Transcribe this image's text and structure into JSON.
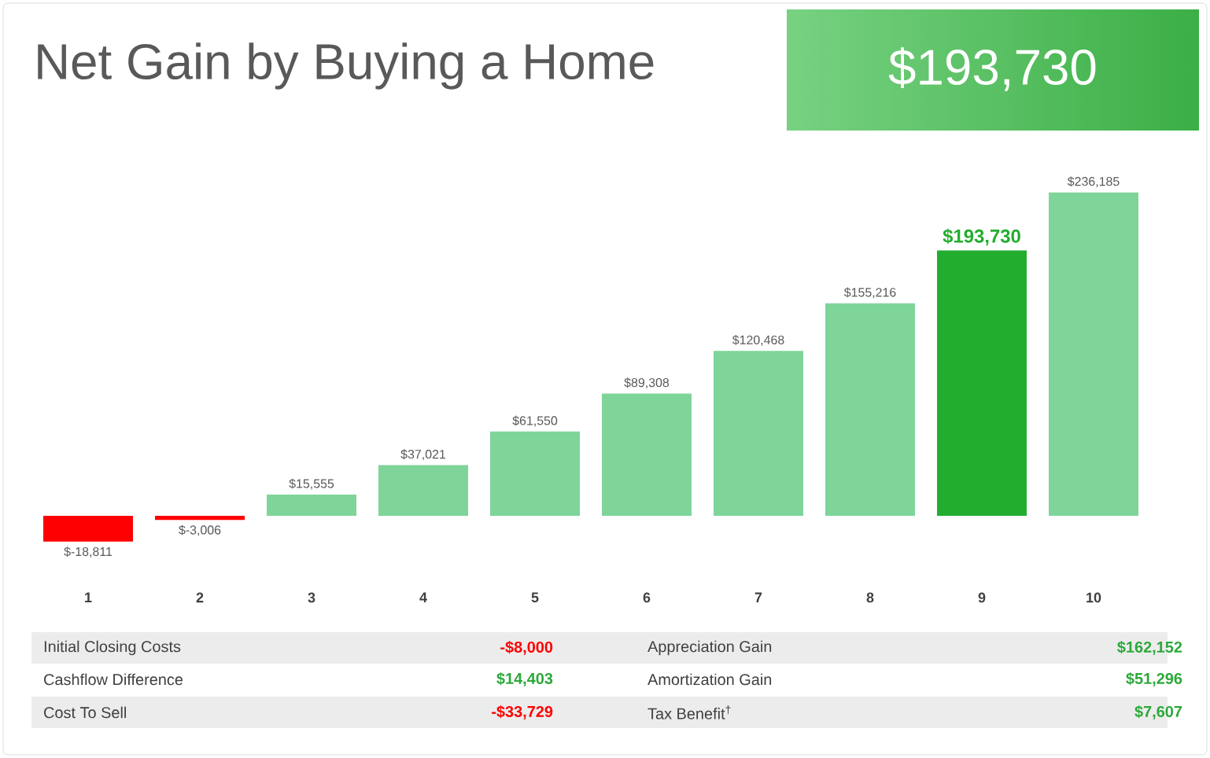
{
  "chart_data": {
    "type": "bar",
    "title": "Net Gain by Buying a Home",
    "subtitle": "$193,730",
    "categories": [
      "1",
      "2",
      "3",
      "4",
      "5",
      "6",
      "7",
      "8",
      "9",
      "10"
    ],
    "values": [
      -18811,
      -3006,
      15555,
      37021,
      61550,
      89308,
      120468,
      155216,
      193730,
      236185
    ],
    "colors": [
      "#ff0000",
      "#ff0000",
      "#7fd49a",
      "#7fd49a",
      "#7fd49a",
      "#7fd49a",
      "#7fd49a",
      "#7fd49a",
      "#22ad2e",
      "#7fd49a"
    ],
    "value_labels": [
      "$-18,811",
      "$-3,006",
      "$15,555",
      "$37,021",
      "$61,550",
      "$89,308",
      "$120,468",
      "$155,216",
      "$193,730",
      "$236,185"
    ],
    "annotations": [
      "Initial Closing Costs",
      "-$8,000",
      "Appreciation Gain",
      "$162,152",
      "Cashflow Difference",
      "$14,403",
      "Amortization Gain",
      "$51,296",
      "Cost To Sell",
      "-$33,729",
      "Tax Benefit$^{†}$",
      "$7,607"
    ]
  }
}
